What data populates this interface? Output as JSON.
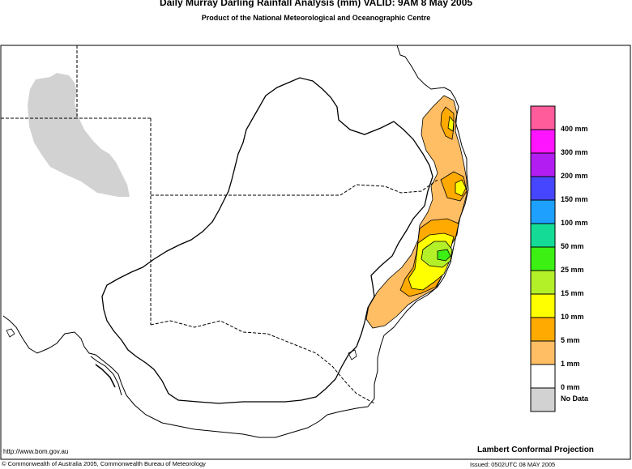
{
  "header": {
    "title": "Daily Murray Darling Rainfall Analysis (mm)  VALID: 9AM  8 May 2005",
    "subtitle": "Product of the National Meteorological and Oceanographic Centre"
  },
  "legend": {
    "items": [
      {
        "label": "400 mm",
        "color": "#ff5c9c"
      },
      {
        "label": "300 mm",
        "color": "#ff14ff"
      },
      {
        "label": "200 mm",
        "color": "#b21ef2"
      },
      {
        "label": "150 mm",
        "color": "#4646ff"
      },
      {
        "label": "100 mm",
        "color": "#1ea0ff"
      },
      {
        "label": "50 mm",
        "color": "#14dc96"
      },
      {
        "label": "25 mm",
        "color": "#3cf014"
      },
      {
        "label": "15 mm",
        "color": "#b4f028"
      },
      {
        "label": "10 mm",
        "color": "#ffff00"
      },
      {
        "label": "5 mm",
        "color": "#ffaa00"
      },
      {
        "label": "1 mm",
        "color": "#ffbe64"
      },
      {
        "label": "0 mm",
        "color": "#ffffff"
      },
      {
        "label": "No Data",
        "color": "#d2d2d2"
      }
    ]
  },
  "footer": {
    "url": "http://www.bom.gov.au",
    "projection": "Lambert Conformal Projection",
    "copyright": "© Commonwealth of Australia 2005, Commonwealth Bureau of Meteorology",
    "issued": "Issued: 0502UTC 08 MAY 2005"
  }
}
